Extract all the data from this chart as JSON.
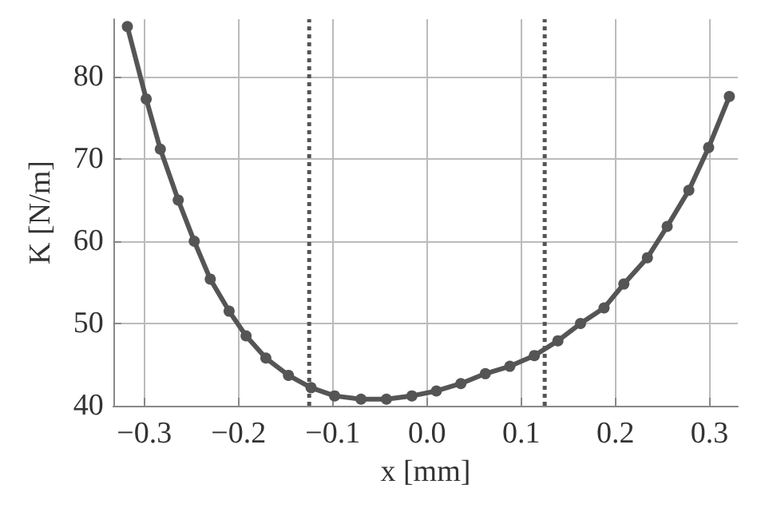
{
  "chart_data": {
    "type": "line",
    "xlabel": "x [mm]",
    "ylabel": "K [N/m]",
    "series": [
      {
        "color": "#555555",
        "x": [
          -0.318,
          -0.298,
          -0.283,
          -0.264,
          -0.247,
          -0.23,
          -0.21,
          -0.192,
          -0.171,
          -0.147,
          -0.123,
          -0.098,
          -0.07,
          -0.043,
          -0.016,
          0.01,
          0.036,
          0.062,
          0.088,
          0.114,
          0.139,
          0.163,
          0.188,
          0.209,
          0.234,
          0.255,
          0.278,
          0.299,
          0.321
        ],
        "values": [
          86.1,
          77.3,
          71.2,
          65.0,
          60.0,
          55.4,
          51.5,
          48.5,
          45.8,
          43.7,
          42.2,
          41.2,
          40.8,
          40.8,
          41.2,
          41.8,
          42.7,
          43.9,
          44.8,
          46.1,
          47.9,
          50.0,
          51.9,
          54.8,
          58.0,
          61.8,
          66.2,
          71.4,
          77.6
        ]
      }
    ],
    "xlim": [
      -0.333,
      0.33
    ],
    "ylim": [
      40,
      87
    ],
    "xticks": [
      {
        "value": -0.3,
        "label": "−0.3"
      },
      {
        "value": -0.2,
        "label": "−0.2"
      },
      {
        "value": -0.1,
        "label": "−0.1"
      },
      {
        "value": 0,
        "label": "0.0"
      },
      {
        "value": 0.1,
        "label": "0.1"
      },
      {
        "value": 0.2,
        "label": "0.2"
      },
      {
        "value": 0.3,
        "label": "0.3"
      }
    ],
    "yticks": [
      40,
      50,
      60,
      70,
      80
    ],
    "ref_lines": [
      {
        "axis": "x",
        "value": -0.125,
        "line_style": "dotted",
        "color": "#555555"
      },
      {
        "axis": "x",
        "value": 0.125,
        "line_style": "dotted",
        "color": "#555555"
      }
    ],
    "grid": true,
    "marker": "circle",
    "line_style": "solid"
  }
}
